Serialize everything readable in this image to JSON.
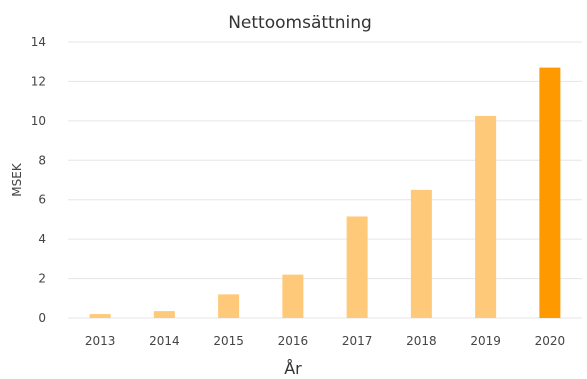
{
  "chart_data": {
    "type": "bar",
    "title": "Nettoomsättning",
    "xlabel": "År",
    "ylabel": "MSEK",
    "categories": [
      "2013",
      "2014",
      "2015",
      "2016",
      "2017",
      "2018",
      "2019",
      "2020"
    ],
    "values": [
      0.2,
      0.35,
      1.2,
      2.2,
      5.15,
      6.5,
      10.25,
      12.7
    ],
    "ylim": [
      0,
      14
    ],
    "yticks": [
      0,
      2,
      4,
      6,
      8,
      10,
      12,
      14
    ],
    "grid": true,
    "colors": {
      "bar": "#ffc97a",
      "highlight": "#ff9900"
    },
    "highlight_category": "2020"
  }
}
